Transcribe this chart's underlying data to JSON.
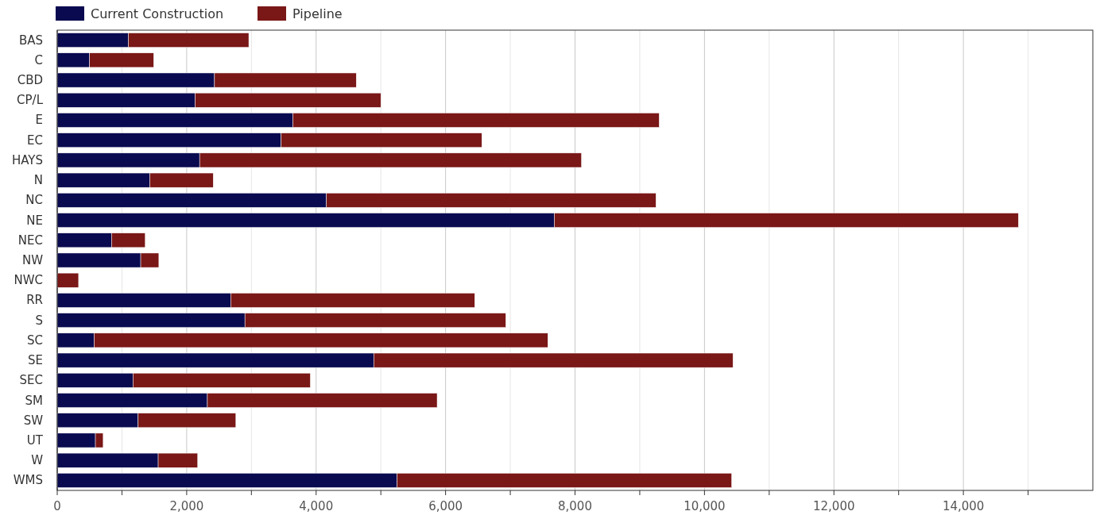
{
  "chart_data": {
    "type": "bar",
    "orientation": "horizontal",
    "stacked": true,
    "categories": [
      "BAS",
      "C",
      "CBD",
      "CP/L",
      "E",
      "EC",
      "HAYS",
      "N",
      "NC",
      "NE",
      "NEC",
      "NW",
      "NWC",
      "RR",
      "S",
      "SC",
      "SE",
      "SEC",
      "SM",
      "SW",
      "UT",
      "W",
      "WMS"
    ],
    "series": [
      {
        "name": "Current Construction",
        "color": "#0a0a50",
        "values": [
          1100,
          500,
          2430,
          2130,
          3640,
          3460,
          2200,
          1430,
          4160,
          7680,
          840,
          1290,
          0,
          2680,
          2900,
          570,
          4890,
          1170,
          2320,
          1250,
          590,
          1560,
          5250
        ]
      },
      {
        "name": "Pipeline",
        "color": "#7a1717",
        "values": [
          1860,
          990,
          2190,
          2870,
          5660,
          3100,
          5900,
          980,
          5090,
          7170,
          520,
          280,
          330,
          3770,
          4030,
          7010,
          5550,
          2740,
          3550,
          1510,
          120,
          610,
          5170
        ]
      }
    ],
    "xlim": [
      0,
      16000
    ],
    "xticks": [
      0,
      {
        "value": 1000,
        "label": null
      },
      {
        "value": 2000,
        "label": "2,000"
      },
      {
        "value": 3000,
        "label": null
      },
      {
        "value": 4000,
        "label": "4,000"
      },
      {
        "value": 5000,
        "label": null
      },
      {
        "value": 6000,
        "label": "6,000"
      },
      {
        "value": 7000,
        "label": null
      },
      {
        "value": 8000,
        "label": "8,000"
      },
      {
        "value": 9000,
        "label": null
      },
      {
        "value": 10000,
        "label": "10,000"
      },
      {
        "value": 11000,
        "label": null
      },
      {
        "value": 12000,
        "label": "12,000"
      },
      {
        "value": 13000,
        "label": null
      },
      {
        "value": 14000,
        "label": "14,000"
      },
      {
        "value": 15000,
        "label": null
      }
    ],
    "grid": "x",
    "legend": "top left"
  }
}
